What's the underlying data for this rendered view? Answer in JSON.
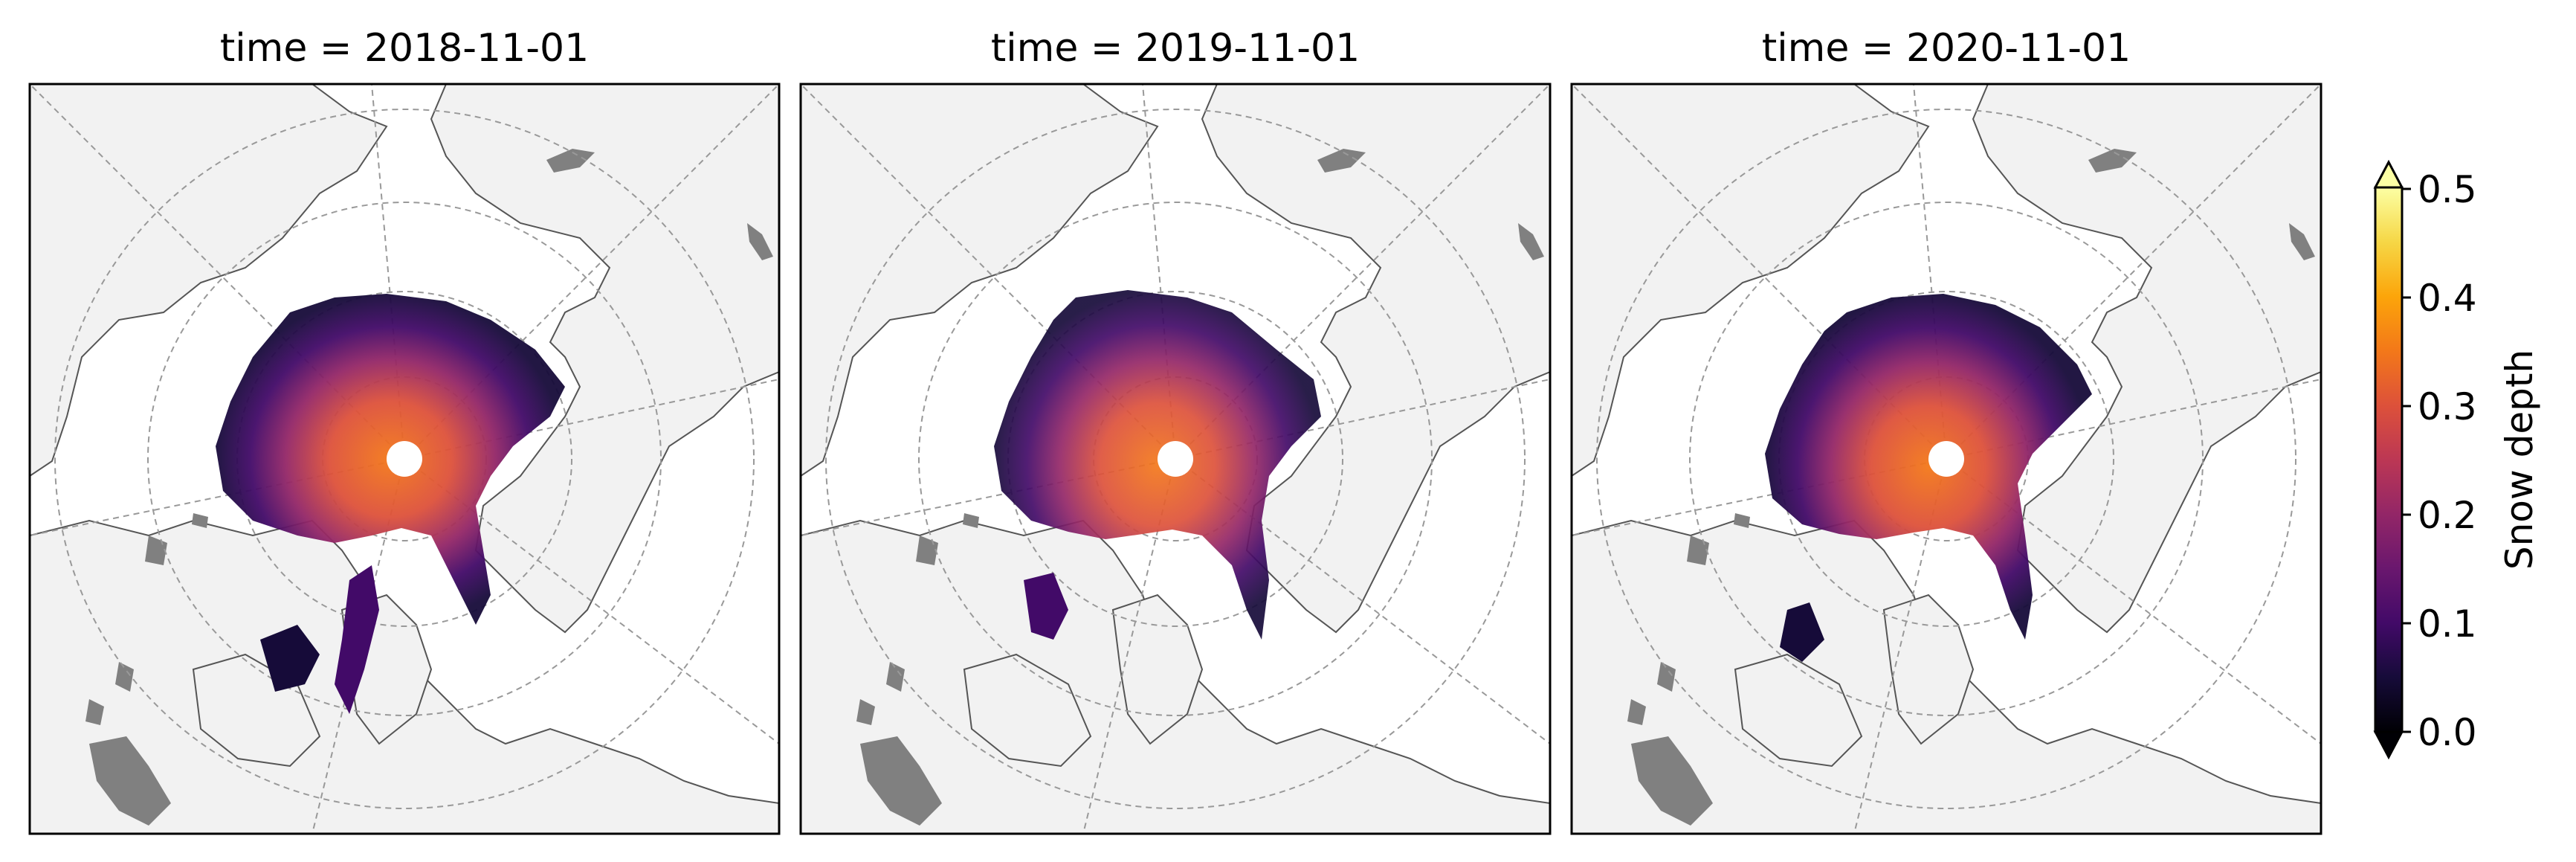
{
  "panels": [
    {
      "title": "time = 2018-11-01"
    },
    {
      "title": "time = 2019-11-01"
    },
    {
      "title": "time = 2020-11-01"
    }
  ],
  "colorbar": {
    "label": "Snow depth",
    "ticks": [
      "0.0",
      "0.1",
      "0.2",
      "0.3",
      "0.4",
      "0.5"
    ],
    "range": [
      0.0,
      0.5
    ],
    "extend": "both",
    "colormap": "inferno"
  },
  "colors": {
    "land": "#f2f2f2",
    "ocean": "#ffffff",
    "lakes": "#808080",
    "coastline": "#555555",
    "gridlines": "#999999"
  }
}
